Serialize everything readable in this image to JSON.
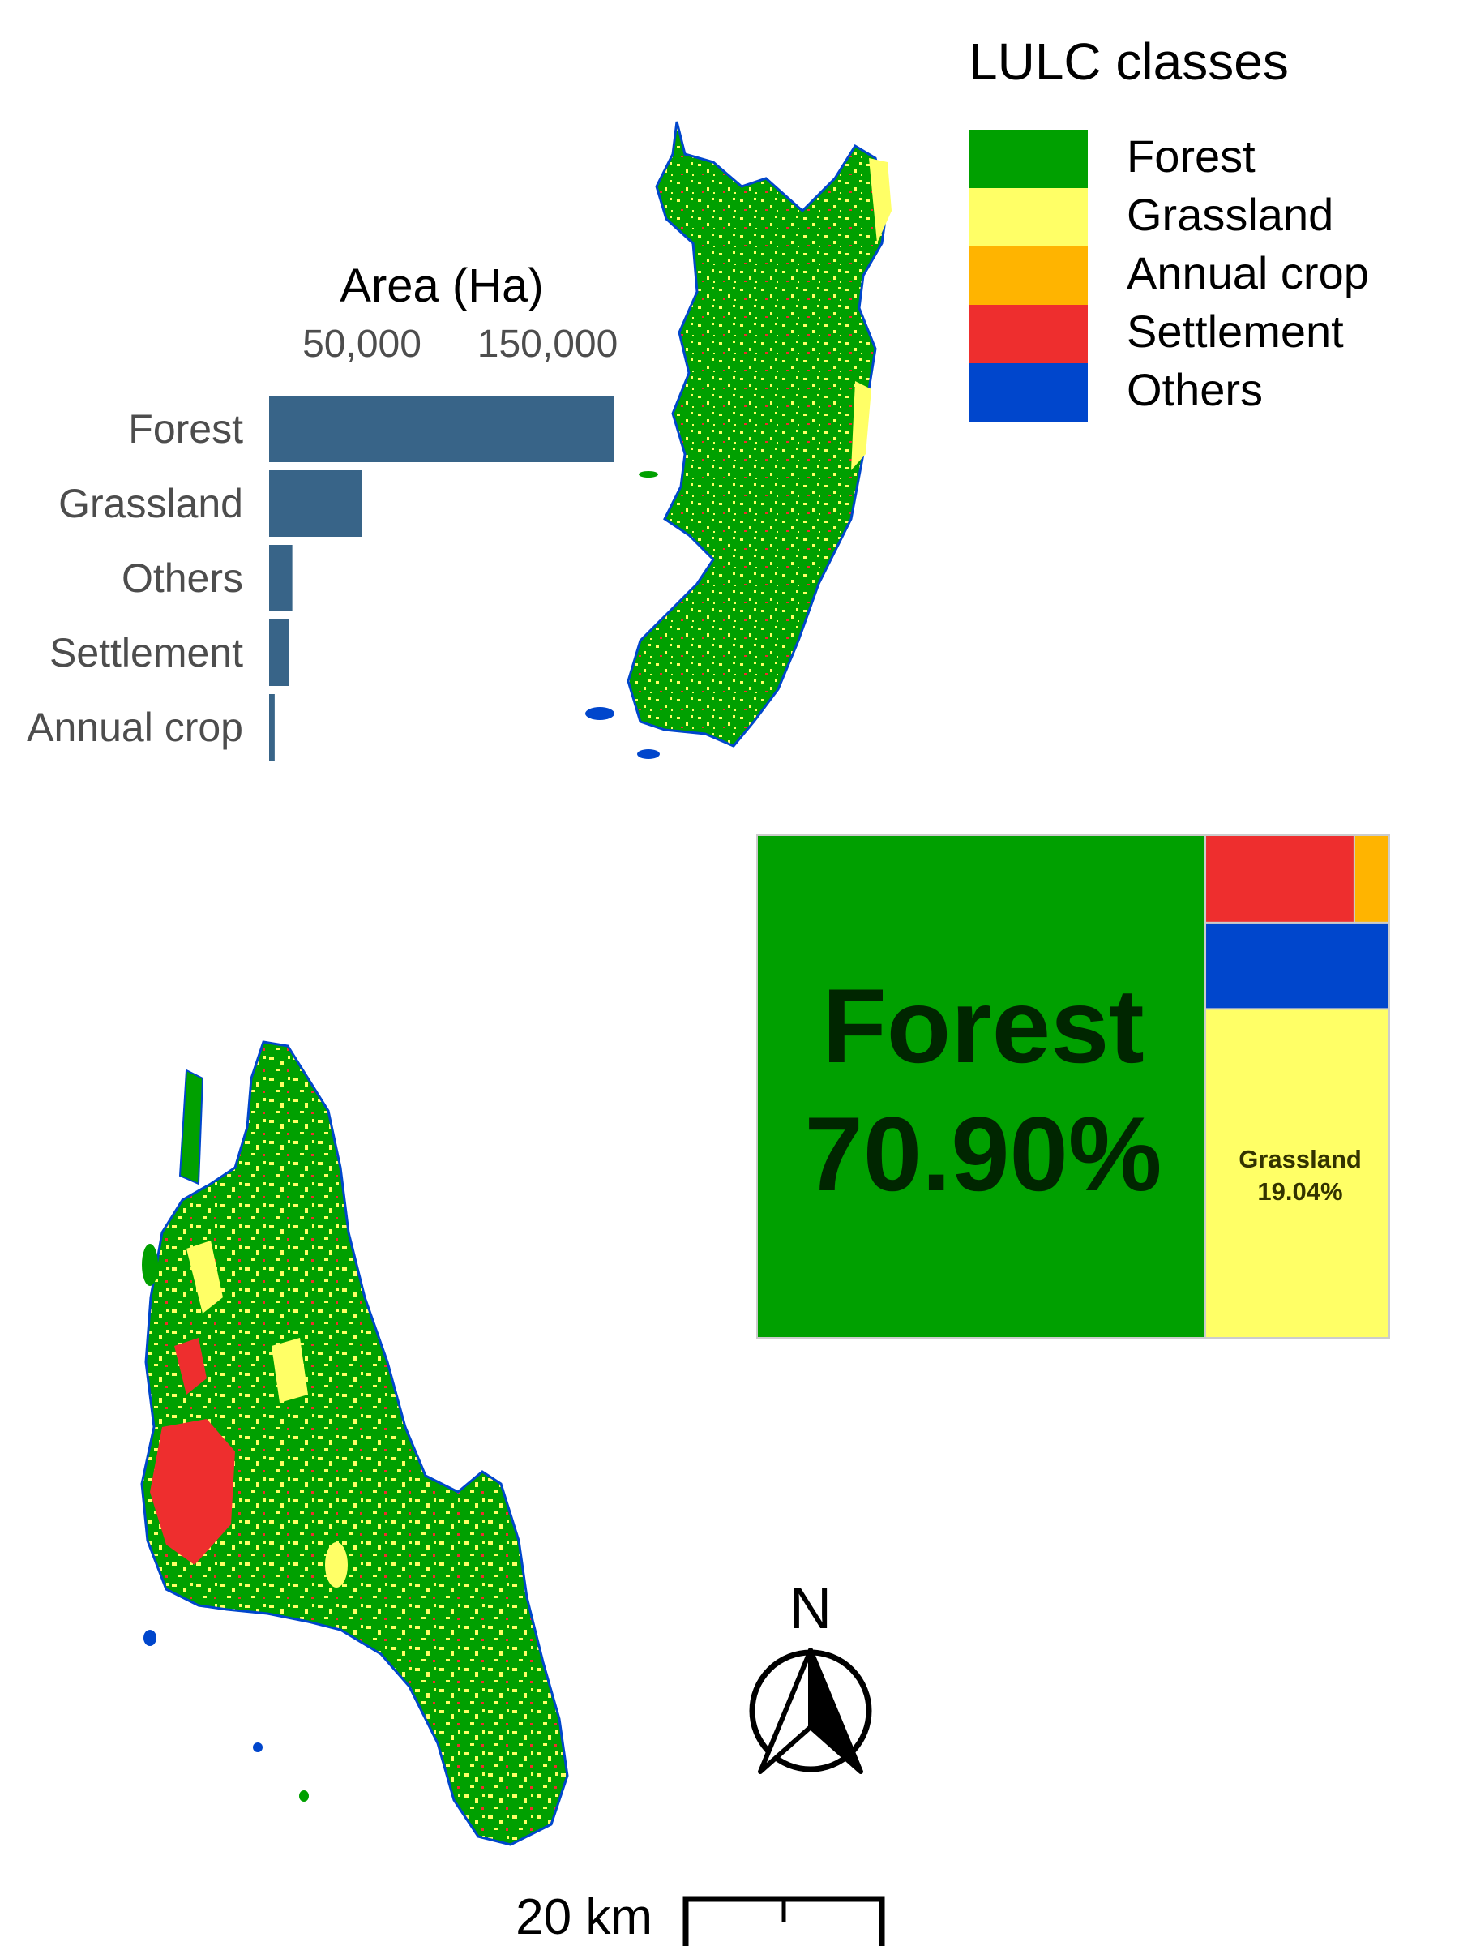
{
  "legend": {
    "title": "LULC classes",
    "items": [
      {
        "label": "Forest",
        "color": "#00A000"
      },
      {
        "label": "Grassland",
        "color": "#FFFF66"
      },
      {
        "label": "Annual crop",
        "color": "#FFB400"
      },
      {
        "label": "Settlement",
        "color": "#EE2E2E"
      },
      {
        "label": "Others",
        "color": "#0046CC"
      }
    ]
  },
  "bar_chart_label": "Area (Ha)",
  "treemap_labels": {
    "forest_name": "Forest",
    "forest_pct": "70.90%",
    "grassland": "Grassland",
    "grassland_pct": "19.04%"
  },
  "map": {
    "north_label": "N",
    "scale_label": "20 km"
  },
  "chart_data": [
    {
      "type": "bar",
      "orientation": "horizontal",
      "xlabel": "Area (Ha)",
      "categories": [
        "Forest",
        "Grassland",
        "Others",
        "Settlement",
        "Annual crop"
      ],
      "values": [
        186000,
        50000,
        12500,
        10500,
        3000
      ],
      "xticks": [
        50000,
        150000
      ],
      "tick_labels": [
        "50,000",
        "150,000"
      ],
      "bar_color": "#386488"
    },
    {
      "type": "treemap",
      "items": [
        {
          "label": "Forest",
          "value": 70.9,
          "color": "#00A000"
        },
        {
          "label": "Grassland",
          "value": 19.04,
          "color": "#FFFF66"
        },
        {
          "label": "Others",
          "value": 5.0,
          "color": "#0046CC"
        },
        {
          "label": "Settlement",
          "value": 4.1,
          "color": "#EE2E2E"
        },
        {
          "label": "Annual crop",
          "value": 0.96,
          "color": "#FFB400"
        }
      ]
    }
  ]
}
